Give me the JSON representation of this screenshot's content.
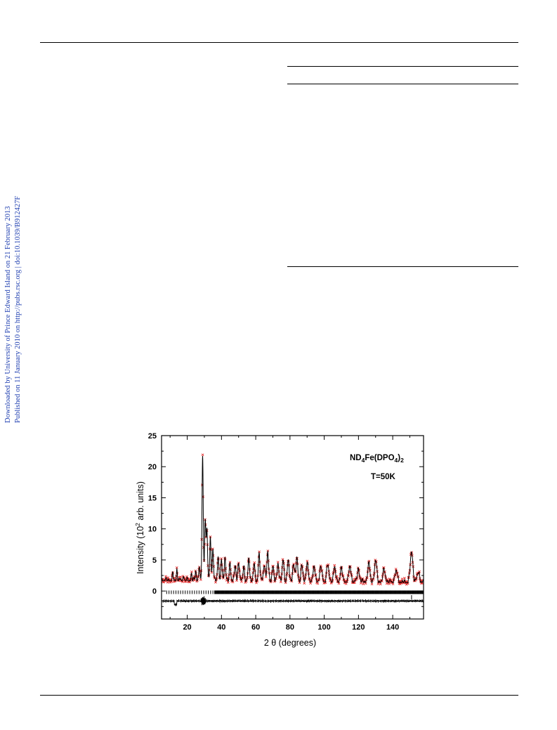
{
  "sidebar": {
    "line1": "Downloaded by University of Prince Edward Island on 21 February 2013",
    "line2": "Published on 11 January 2010 on http://pubs.rsc.org | doi:10.1039/B912427F",
    "link_color": "#1f3fb0"
  },
  "chart_data": {
    "type": "scatter",
    "title": "ND4Fe(DPO4)2",
    "title_parts": {
      "a": "ND",
      "sub1": "4",
      "b": "Fe(DPO",
      "sub2": "4",
      "c": ")",
      "sub3": "2"
    },
    "subtitle": "T=50K",
    "xlabel": "2 θ (degrees)",
    "ylabel_parts": {
      "a": "Intensity (10",
      "sup": "2",
      "b": " arb. units)"
    },
    "xlim": [
      5,
      158
    ],
    "ylim": [
      -4.5,
      25
    ],
    "xticks": [
      20,
      40,
      60,
      80,
      100,
      120,
      140
    ],
    "yticks": [
      0,
      5,
      10,
      15,
      20,
      25
    ],
    "colors": {
      "observed": "#e02020",
      "calculated": "#000000"
    },
    "peaks": [
      {
        "x": 11.5,
        "y": 2.6
      },
      {
        "x": 14.0,
        "y": 3.5
      },
      {
        "x": 18.0,
        "y": 2.4
      },
      {
        "x": 22.5,
        "y": 2.8
      },
      {
        "x": 25.0,
        "y": 3.3
      },
      {
        "x": 27.0,
        "y": 4.0
      },
      {
        "x": 29.0,
        "y": 22.0
      },
      {
        "x": 30.5,
        "y": 11.5
      },
      {
        "x": 31.5,
        "y": 10.0
      },
      {
        "x": 33.5,
        "y": 8.8
      },
      {
        "x": 35.0,
        "y": 6.5
      },
      {
        "x": 38.0,
        "y": 5.8
      },
      {
        "x": 40.0,
        "y": 5.0
      },
      {
        "x": 42.0,
        "y": 5.5
      },
      {
        "x": 45.0,
        "y": 4.5
      },
      {
        "x": 48.0,
        "y": 4.2
      },
      {
        "x": 50.0,
        "y": 4.8
      },
      {
        "x": 53.0,
        "y": 4.0
      },
      {
        "x": 56.0,
        "y": 5.2
      },
      {
        "x": 59.0,
        "y": 4.3
      },
      {
        "x": 62.0,
        "y": 6.0
      },
      {
        "x": 65.0,
        "y": 4.5
      },
      {
        "x": 67.0,
        "y": 6.2
      },
      {
        "x": 70.0,
        "y": 4.0
      },
      {
        "x": 73.0,
        "y": 4.6
      },
      {
        "x": 76.0,
        "y": 5.0
      },
      {
        "x": 79.0,
        "y": 4.8
      },
      {
        "x": 82.0,
        "y": 4.3
      },
      {
        "x": 84.0,
        "y": 5.3
      },
      {
        "x": 87.0,
        "y": 4.0
      },
      {
        "x": 90.0,
        "y": 4.6
      },
      {
        "x": 94.0,
        "y": 4.0
      },
      {
        "x": 98.0,
        "y": 4.1
      },
      {
        "x": 102.0,
        "y": 4.4
      },
      {
        "x": 106.0,
        "y": 3.8
      },
      {
        "x": 110.0,
        "y": 3.6
      },
      {
        "x": 115.0,
        "y": 3.9
      },
      {
        "x": 120.0,
        "y": 3.5
      },
      {
        "x": 126.0,
        "y": 4.3
      },
      {
        "x": 130.0,
        "y": 4.8
      },
      {
        "x": 135.0,
        "y": 3.4
      },
      {
        "x": 142.0,
        "y": 3.2
      },
      {
        "x": 151.0,
        "y": 6.2
      },
      {
        "x": 155.0,
        "y": 3.0
      }
    ],
    "reflection_tick_y": -0.2,
    "difference_baseline": -1.6
  }
}
